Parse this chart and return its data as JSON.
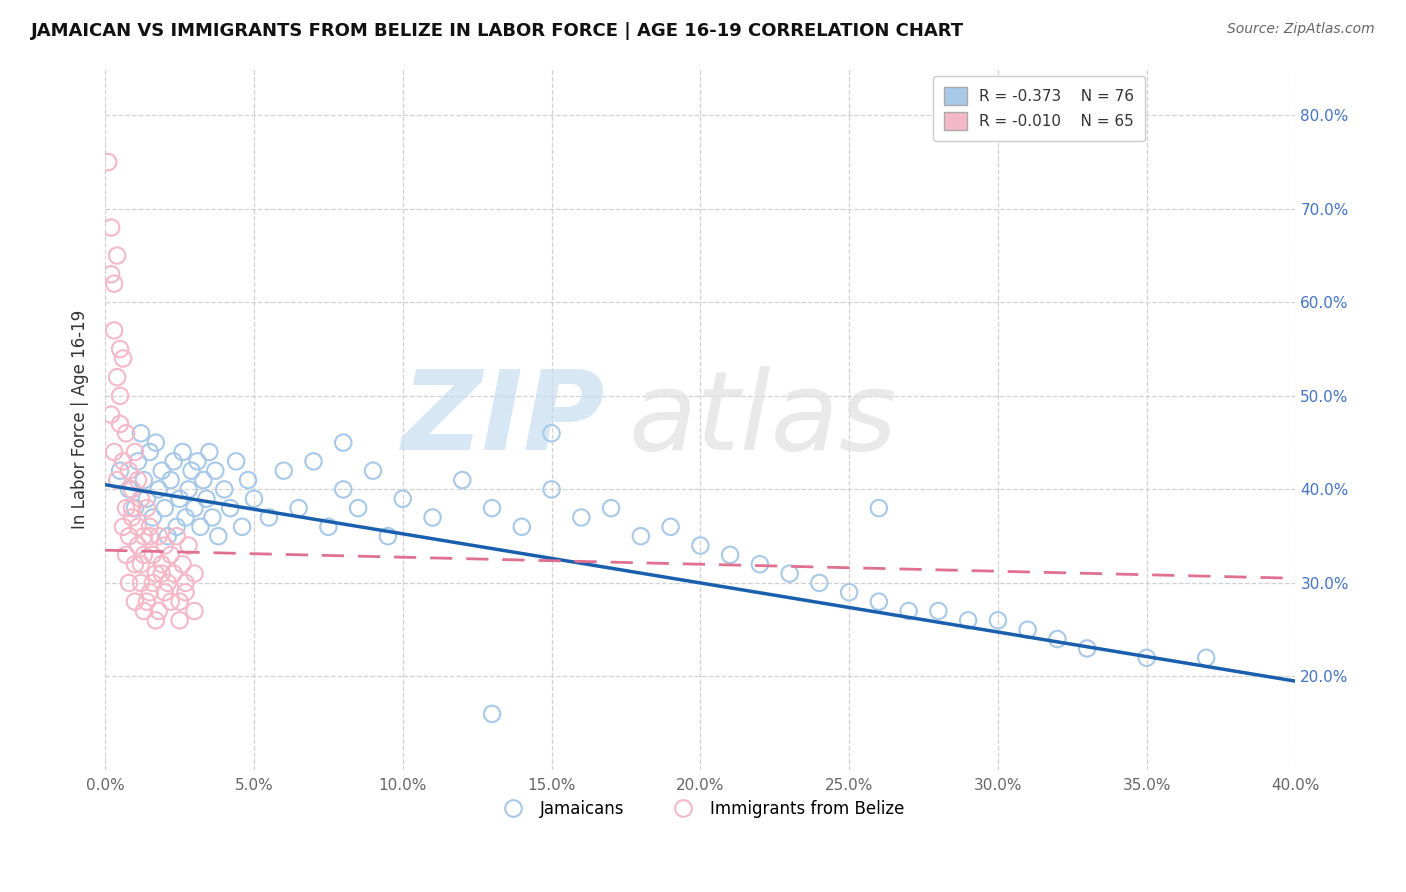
{
  "title": "JAMAICAN VS IMMIGRANTS FROM BELIZE IN LABOR FORCE | AGE 16-19 CORRELATION CHART",
  "source": "Source: ZipAtlas.com",
  "ylabel": "In Labor Force | Age 16-19",
  "xlim": [
    0.0,
    0.4
  ],
  "ylim": [
    0.1,
    0.85
  ],
  "x_ticks": [
    0.0,
    0.05,
    0.1,
    0.15,
    0.2,
    0.25,
    0.3,
    0.35,
    0.4
  ],
  "x_tick_labels": [
    "0.0%",
    "5.0%",
    "10.0%",
    "15.0%",
    "20.0%",
    "25.0%",
    "30.0%",
    "35.0%",
    "40.0%"
  ],
  "y_ticks": [
    0.2,
    0.3,
    0.4,
    0.5,
    0.6,
    0.7,
    0.8
  ],
  "y_tick_labels": [
    "20.0%",
    "30.0%",
    "40.0%",
    "50.0%",
    "60.0%",
    "70.0%",
    "80.0%"
  ],
  "blue_color": "#a8c8e8",
  "pink_color": "#f5b8c8",
  "blue_line_color": "#1a5fad",
  "pink_line_color": "#e07090",
  "jamaicans_x": [
    0.005,
    0.008,
    0.01,
    0.011,
    0.012,
    0.013,
    0.014,
    0.015,
    0.016,
    0.017,
    0.018,
    0.019,
    0.02,
    0.021,
    0.022,
    0.023,
    0.024,
    0.025,
    0.026,
    0.027,
    0.028,
    0.029,
    0.03,
    0.031,
    0.032,
    0.033,
    0.034,
    0.035,
    0.036,
    0.037,
    0.038,
    0.04,
    0.042,
    0.044,
    0.046,
    0.048,
    0.05,
    0.055,
    0.06,
    0.065,
    0.07,
    0.075,
    0.08,
    0.085,
    0.09,
    0.095,
    0.1,
    0.11,
    0.12,
    0.13,
    0.14,
    0.15,
    0.16,
    0.17,
    0.18,
    0.19,
    0.2,
    0.21,
    0.22,
    0.23,
    0.24,
    0.25,
    0.26,
    0.27,
    0.28,
    0.29,
    0.3,
    0.31,
    0.32,
    0.33,
    0.15,
    0.26,
    0.35,
    0.37,
    0.13,
    0.08
  ],
  "jamaicans_y": [
    0.42,
    0.4,
    0.38,
    0.43,
    0.46,
    0.41,
    0.39,
    0.44,
    0.37,
    0.45,
    0.4,
    0.42,
    0.38,
    0.35,
    0.41,
    0.43,
    0.36,
    0.39,
    0.44,
    0.37,
    0.4,
    0.42,
    0.38,
    0.43,
    0.36,
    0.41,
    0.39,
    0.44,
    0.37,
    0.42,
    0.35,
    0.4,
    0.38,
    0.43,
    0.36,
    0.41,
    0.39,
    0.37,
    0.42,
    0.38,
    0.43,
    0.36,
    0.4,
    0.38,
    0.42,
    0.35,
    0.39,
    0.37,
    0.41,
    0.38,
    0.36,
    0.4,
    0.37,
    0.38,
    0.35,
    0.36,
    0.34,
    0.33,
    0.32,
    0.31,
    0.3,
    0.29,
    0.28,
    0.27,
    0.27,
    0.26,
    0.26,
    0.25,
    0.24,
    0.23,
    0.46,
    0.38,
    0.22,
    0.22,
    0.16,
    0.45
  ],
  "belize_x": [
    0.001,
    0.002,
    0.002,
    0.003,
    0.003,
    0.004,
    0.004,
    0.005,
    0.005,
    0.006,
    0.006,
    0.007,
    0.007,
    0.008,
    0.008,
    0.009,
    0.009,
    0.01,
    0.01,
    0.011,
    0.011,
    0.012,
    0.012,
    0.013,
    0.013,
    0.014,
    0.015,
    0.015,
    0.016,
    0.017,
    0.018,
    0.019,
    0.02,
    0.021,
    0.022,
    0.023,
    0.024,
    0.025,
    0.026,
    0.027,
    0.028,
    0.03,
    0.002,
    0.003,
    0.004,
    0.006,
    0.007,
    0.008,
    0.01,
    0.012,
    0.013,
    0.015,
    0.016,
    0.018,
    0.02,
    0.005,
    0.009,
    0.011,
    0.014,
    0.017,
    0.019,
    0.022,
    0.025,
    0.027,
    0.03
  ],
  "belize_y": [
    0.75,
    0.68,
    0.63,
    0.62,
    0.57,
    0.65,
    0.52,
    0.5,
    0.47,
    0.54,
    0.43,
    0.46,
    0.38,
    0.42,
    0.35,
    0.4,
    0.37,
    0.44,
    0.32,
    0.41,
    0.36,
    0.39,
    0.3,
    0.35,
    0.33,
    0.38,
    0.36,
    0.29,
    0.33,
    0.31,
    0.35,
    0.32,
    0.34,
    0.3,
    0.33,
    0.31,
    0.35,
    0.28,
    0.32,
    0.3,
    0.34,
    0.31,
    0.48,
    0.44,
    0.41,
    0.36,
    0.33,
    0.3,
    0.28,
    0.32,
    0.27,
    0.35,
    0.3,
    0.27,
    0.29,
    0.55,
    0.38,
    0.34,
    0.28,
    0.26,
    0.31,
    0.28,
    0.26,
    0.29,
    0.27
  ],
  "blue_line_x": [
    0.0,
    0.4
  ],
  "blue_line_y": [
    0.405,
    0.195
  ],
  "pink_line_x": [
    0.0,
    0.4
  ],
  "pink_line_y": [
    0.335,
    0.305
  ]
}
